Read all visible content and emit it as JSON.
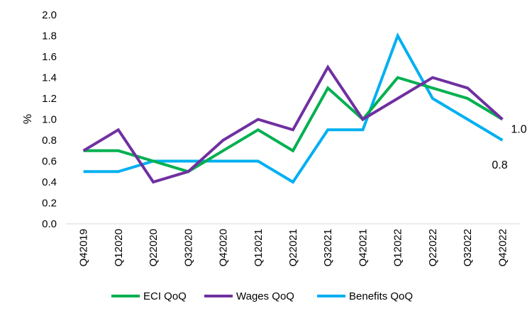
{
  "chart_data": {
    "type": "line",
    "title": "",
    "xlabel": "",
    "ylabel": "%",
    "ylim": [
      0,
      2.0
    ],
    "yticks": [
      "0.0",
      "0.2",
      "0.4",
      "0.6",
      "0.8",
      "1.0",
      "1.2",
      "1.4",
      "1.6",
      "1.8",
      "2.0"
    ],
    "grid": false,
    "legend_position": "bottom",
    "categories": [
      "Q42019",
      "Q12020",
      "Q22020",
      "Q32020",
      "Q42020",
      "Q12021",
      "Q22021",
      "Q32021",
      "Q42021",
      "Q12022",
      "Q22022",
      "Q32022",
      "Q42022"
    ],
    "series": [
      {
        "name": "ECI QoQ",
        "color": "#00B050",
        "values": [
          0.7,
          0.7,
          0.6,
          0.5,
          0.7,
          0.9,
          0.7,
          1.3,
          1.0,
          1.4,
          1.3,
          1.2,
          1.0
        ]
      },
      {
        "name": "Wages QoQ",
        "color": "#7030A0",
        "values": [
          0.7,
          0.9,
          0.4,
          0.5,
          0.8,
          1.0,
          0.9,
          1.5,
          1.0,
          1.2,
          1.4,
          1.3,
          1.0
        ]
      },
      {
        "name": "Benefits QoQ",
        "color": "#00B0F0",
        "values": [
          0.5,
          0.5,
          0.6,
          0.6,
          0.6,
          0.6,
          0.4,
          0.9,
          0.9,
          1.8,
          1.2,
          1.0,
          0.8
        ]
      }
    ],
    "annotations": [
      "1.0",
      "0.8"
    ]
  }
}
